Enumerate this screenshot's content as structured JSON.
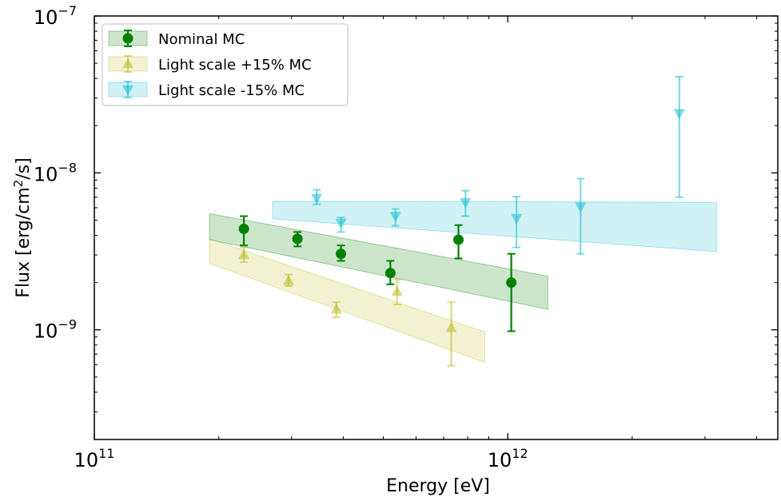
{
  "chart_data": {
    "type": "scatter",
    "xlabel": "Energy [eV]",
    "ylabel": {
      "prefix": "Flux [erg/cm",
      "sup": "2",
      "suffix": "/s]"
    },
    "xscale": "log",
    "yscale": "log",
    "xlim": [
      100000000000.0,
      4500000000000.0
    ],
    "ylim": [
      2e-10,
      1e-07
    ],
    "grid": false,
    "legend_position": "top-left",
    "x_ticks": [
      {
        "value": 100000000000.0,
        "base": "10",
        "exp": "11"
      },
      {
        "value": 1000000000000.0,
        "base": "10",
        "exp": "12"
      }
    ],
    "y_ticks": [
      {
        "value": 1e-09,
        "base": "10",
        "exp": "−9"
      },
      {
        "value": 1e-08,
        "base": "10",
        "exp": "−8"
      },
      {
        "value": 1e-07,
        "base": "10",
        "exp": "−7"
      }
    ],
    "series": [
      {
        "name": "Nominal MC",
        "color": "#008000",
        "marker": "circle",
        "points": [
          {
            "x": 230000000000.0,
            "y": 4.4e-09,
            "ylo": 3.45e-09,
            "yhi": 5.3e-09
          },
          {
            "x": 310000000000.0,
            "y": 3.8e-09,
            "ylo": 3.4e-09,
            "yhi": 4.2e-09
          },
          {
            "x": 395000000000.0,
            "y": 3.05e-09,
            "ylo": 2.75e-09,
            "yhi": 3.45e-09
          },
          {
            "x": 520000000000.0,
            "y": 2.3e-09,
            "ylo": 1.95e-09,
            "yhi": 2.75e-09
          },
          {
            "x": 760000000000.0,
            "y": 3.75e-09,
            "ylo": 2.85e-09,
            "yhi": 4.65e-09
          },
          {
            "x": 1020000000000.0,
            "y": 2e-09,
            "ylo": 9.8e-10,
            "yhi": 3.05e-09
          }
        ],
        "band": {
          "x": [
            190000000000.0,
            1250000000000.0
          ],
          "upper": [
            5.5e-09,
            2.2e-09
          ],
          "lower": [
            3.75e-09,
            1.35e-09
          ]
        }
      },
      {
        "name": "Light scale +15% MC",
        "color": "#bcbd22",
        "marker": "triangle-up",
        "points": [
          {
            "x": 230000000000.0,
            "y": 3e-09,
            "ylo": 2.7e-09,
            "yhi": 3.35e-09
          },
          {
            "x": 295000000000.0,
            "y": 2.05e-09,
            "ylo": 1.9e-09,
            "yhi": 2.25e-09
          },
          {
            "x": 385000000000.0,
            "y": 1.35e-09,
            "ylo": 1.2e-09,
            "yhi": 1.5e-09
          },
          {
            "x": 540000000000.0,
            "y": 1.75e-09,
            "ylo": 1.45e-09,
            "yhi": 2.1e-09
          },
          {
            "x": 730000000000.0,
            "y": 1.03e-09,
            "ylo": 5.9e-10,
            "yhi": 1.5e-09
          }
        ],
        "band": {
          "x": [
            190000000000.0,
            880000000000.0
          ],
          "upper": [
            3.8e-09,
            9.7e-10
          ],
          "lower": [
            2.65e-09,
            6.2e-10
          ]
        }
      },
      {
        "name": "Light scale -15% MC",
        "color": "#17becf",
        "marker": "triangle-down",
        "points": [
          {
            "x": 345000000000.0,
            "y": 6.9e-09,
            "ylo": 6.3e-09,
            "yhi": 7.8e-09
          },
          {
            "x": 395000000000.0,
            "y": 4.8e-09,
            "ylo": 4.2e-09,
            "yhi": 5.2e-09
          },
          {
            "x": 535000000000.0,
            "y": 5.3e-09,
            "ylo": 4.6e-09,
            "yhi": 5.9e-09
          },
          {
            "x": 790000000000.0,
            "y": 6.5e-09,
            "ylo": 5.3e-09,
            "yhi": 7.7e-09
          },
          {
            "x": 1050000000000.0,
            "y": 5.15e-09,
            "ylo": 3.35e-09,
            "yhi": 7.05e-09
          },
          {
            "x": 1500000000000.0,
            "y": 6.1e-09,
            "ylo": 3.05e-09,
            "yhi": 9.2e-09
          },
          {
            "x": 2600000000000.0,
            "y": 2.4e-08,
            "ylo": 7e-09,
            "yhi": 4.1e-08
          }
        ],
        "band": {
          "x": [
            270000000000.0,
            3200000000000.0
          ],
          "upper": [
            6.6e-09,
            6.5e-09
          ],
          "lower": [
            5.1e-09,
            3.15e-09
          ]
        }
      }
    ]
  }
}
